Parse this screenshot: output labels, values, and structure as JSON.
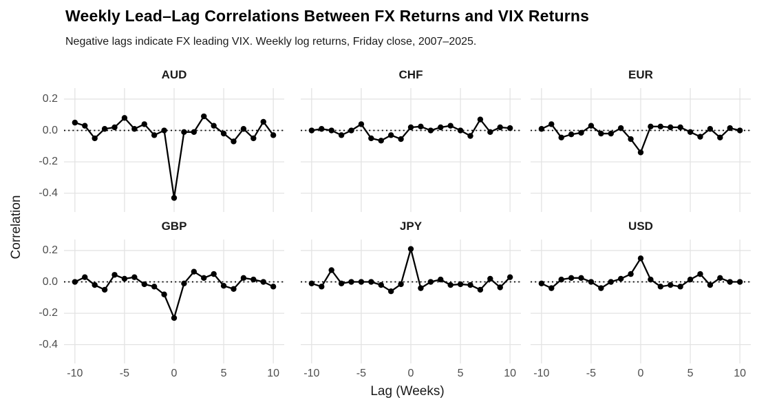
{
  "header": {
    "title": "Weekly Lead–Lag Correlations Between FX Returns and VIX Returns",
    "subtitle": "Negative lags indicate FX leading VIX. Weekly log returns, Friday close, 2007–2025."
  },
  "chart_data": {
    "type": "line",
    "title": "Weekly Lead–Lag Correlations Between FX Returns and VIX Returns",
    "subtitle": "Negative lags indicate FX leading VIX. Weekly log returns, Friday close, 2007–2025.",
    "xlabel": "Lag (Weeks)",
    "ylabel": "Correlation",
    "facet_layout": {
      "rows": 2,
      "cols": 3
    },
    "x": [
      -10,
      -9,
      -8,
      -7,
      -6,
      -5,
      -4,
      -3,
      -2,
      -1,
      0,
      1,
      2,
      3,
      4,
      5,
      6,
      7,
      8,
      9,
      10
    ],
    "series": [
      {
        "name": "AUD",
        "values": [
          0.05,
          0.03,
          -0.05,
          0.01,
          0.02,
          0.08,
          0.01,
          0.04,
          -0.03,
          0.0,
          -0.43,
          -0.01,
          -0.01,
          0.09,
          0.03,
          -0.02,
          -0.07,
          0.01,
          -0.05,
          0.055,
          -0.03
        ]
      },
      {
        "name": "CHF",
        "values": [
          0.0,
          0.01,
          0.0,
          -0.03,
          0.0,
          0.04,
          -0.05,
          -0.065,
          -0.03,
          -0.055,
          0.02,
          0.025,
          0.0,
          0.02,
          0.03,
          0.0,
          -0.035,
          0.07,
          -0.01,
          0.02,
          0.015
        ]
      },
      {
        "name": "EUR",
        "values": [
          0.01,
          0.04,
          -0.045,
          -0.025,
          -0.015,
          0.03,
          -0.02,
          -0.02,
          0.015,
          -0.055,
          -0.14,
          0.025,
          0.025,
          0.02,
          0.02,
          -0.01,
          -0.04,
          0.01,
          -0.045,
          0.015,
          0.0
        ]
      },
      {
        "name": "GBP",
        "values": [
          0.0,
          0.03,
          -0.02,
          -0.05,
          0.045,
          0.02,
          0.03,
          -0.015,
          -0.03,
          -0.08,
          -0.23,
          -0.01,
          0.065,
          0.025,
          0.05,
          -0.025,
          -0.045,
          0.025,
          0.015,
          0.0,
          -0.03
        ]
      },
      {
        "name": "JPY",
        "values": [
          -0.01,
          -0.03,
          0.075,
          -0.01,
          0.0,
          0.0,
          0.0,
          -0.02,
          -0.06,
          -0.015,
          0.21,
          -0.04,
          0.0,
          0.015,
          -0.02,
          -0.015,
          -0.02,
          -0.05,
          0.02,
          -0.035,
          0.03
        ]
      },
      {
        "name": "USD",
        "values": [
          -0.01,
          -0.04,
          0.015,
          0.025,
          0.025,
          0.0,
          -0.04,
          0.0,
          0.02,
          0.05,
          0.15,
          0.015,
          -0.03,
          -0.02,
          -0.03,
          0.015,
          0.05,
          -0.02,
          0.025,
          0.0,
          0.0
        ]
      }
    ],
    "x_ticks": [
      -10,
      -5,
      0,
      5,
      10
    ],
    "y_ticks": [
      0.2,
      0.0,
      -0.2,
      -0.4
    ],
    "y_tick_labels": [
      "0.2",
      "0.0",
      "-0.2",
      "-0.4"
    ],
    "xlim": [
      -11.1,
      11.1
    ],
    "ylim": [
      -0.52,
      0.27
    ],
    "grid": true,
    "legend": "none",
    "zero_line": "dotted",
    "line_color": "#000000",
    "point_color": "#000000",
    "grid_color": "#e3e3e3",
    "axis_text_color": "#4d4d4d"
  }
}
